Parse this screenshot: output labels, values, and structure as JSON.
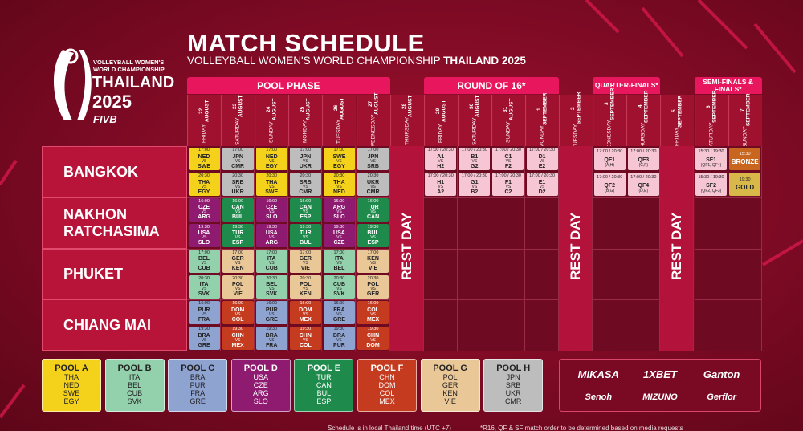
{
  "header": {
    "title": "MATCH SCHEDULE",
    "subtitle": "VOLLEYBALL WOMEN'S WORLD CHAMPIONSHIP",
    "subtitle_strong": "THAILAND 2025"
  },
  "logo": {
    "line1": "VOLLEYBALL WOMEN'S",
    "line2": "WORLD CHAMPIONSHIP",
    "line3": "THAILAND",
    "line4": "2025",
    "brand": "FIVB"
  },
  "vs": "VS",
  "cities": [
    [
      "BANGKOK"
    ],
    [
      "NAKHON",
      "RATCHASIMA"
    ],
    [
      "PHUKET"
    ],
    [
      "CHIANG MAI"
    ]
  ],
  "sections": [
    {
      "label": "POOL PHASE",
      "days": [
        {
          "weekday": "FRIDAY",
          "date": "22 AUGUST",
          "games": [
            {
              "time": "17:00",
              "home": "NED",
              "away": "SWE",
              "color": "#f4d21c"
            },
            {
              "time": "20:30",
              "home": "THA",
              "away": "EGY",
              "color": "#f4d21c"
            },
            {
              "time": "16:00",
              "home": "CZE",
              "away": "ARG",
              "color": "#8e1b70"
            },
            {
              "time": "19:30",
              "home": "USA",
              "away": "SLO",
              "color": "#8e1b70"
            },
            {
              "time": "17:00",
              "home": "BEL",
              "away": "CUB",
              "color": "#93d1ad"
            },
            {
              "time": "20:30",
              "home": "ITA",
              "away": "SVK",
              "color": "#93d1ad"
            },
            {
              "time": "16:00",
              "home": "PUR",
              "away": "FRA",
              "color": "#8fa3d1"
            },
            {
              "time": "19:30",
              "home": "BRA",
              "away": "GRE",
              "color": "#8fa3d1"
            }
          ]
        },
        {
          "weekday": "SATURDAY",
          "date": "23 AUGUST",
          "games": [
            {
              "time": "17:00",
              "home": "JPN",
              "away": "CMR",
              "color": "#bdbdbd"
            },
            {
              "time": "20:30",
              "home": "SRB",
              "away": "UKR",
              "color": "#bdbdbd"
            },
            {
              "time": "16:00",
              "home": "CAN",
              "away": "BUL",
              "color": "#1e8a4b"
            },
            {
              "time": "19:30",
              "home": "TUR",
              "away": "ESP",
              "color": "#1e8a4b"
            },
            {
              "time": "17:00",
              "home": "GER",
              "away": "KEN",
              "color": "#eac796"
            },
            {
              "time": "20:30",
              "home": "POL",
              "away": "VIE",
              "color": "#eac796"
            },
            {
              "time": "16:00",
              "home": "DOM",
              "away": "COL",
              "color": "#c53b1f"
            },
            {
              "time": "19:30",
              "home": "CHN",
              "away": "MEX",
              "color": "#c53b1f"
            }
          ]
        },
        {
          "weekday": "SUNDAY",
          "date": "24 AUGUST",
          "games": [
            {
              "time": "17:00",
              "home": "NED",
              "away": "EGY",
              "color": "#f4d21c"
            },
            {
              "time": "20:30",
              "home": "THA",
              "away": "SWE",
              "color": "#f4d21c"
            },
            {
              "time": "16:00",
              "home": "CZE",
              "away": "SLO",
              "color": "#8e1b70"
            },
            {
              "time": "19:30",
              "home": "USA",
              "away": "ARG",
              "color": "#8e1b70"
            },
            {
              "time": "17:00",
              "home": "ITA",
              "away": "CUB",
              "color": "#93d1ad"
            },
            {
              "time": "20:30",
              "home": "BEL",
              "away": "SVK",
              "color": "#93d1ad"
            },
            {
              "time": "16:00",
              "home": "PUR",
              "away": "GRE",
              "color": "#8fa3d1"
            },
            {
              "time": "19:30",
              "home": "BRA",
              "away": "FRA",
              "color": "#8fa3d1"
            }
          ]
        },
        {
          "weekday": "MONDAY",
          "date": "25 AUGUST",
          "games": [
            {
              "time": "17:00",
              "home": "JPN",
              "away": "UKR",
              "color": "#bdbdbd"
            },
            {
              "time": "20:30",
              "home": "SRB",
              "away": "CMR",
              "color": "#bdbdbd"
            },
            {
              "time": "16:00",
              "home": "CAN",
              "away": "ESP",
              "color": "#1e8a4b"
            },
            {
              "time": "19:30",
              "home": "TUR",
              "away": "BUL",
              "color": "#1e8a4b"
            },
            {
              "time": "17:00",
              "home": "GER",
              "away": "VIE",
              "color": "#eac796"
            },
            {
              "time": "20:30",
              "home": "POL",
              "away": "KEN",
              "color": "#eac796"
            },
            {
              "time": "16:00",
              "home": "DOM",
              "away": "MEX",
              "color": "#c53b1f"
            },
            {
              "time": "19:30",
              "home": "CHN",
              "away": "COL",
              "color": "#c53b1f"
            }
          ]
        },
        {
          "weekday": "TUESDAY",
          "date": "26 AUGUST",
          "games": [
            {
              "time": "17:00",
              "home": "SWE",
              "away": "EGY",
              "color": "#f4d21c"
            },
            {
              "time": "20:30",
              "home": "THA",
              "away": "NED",
              "color": "#f4d21c"
            },
            {
              "time": "16:00",
              "home": "ARG",
              "away": "SLO",
              "color": "#8e1b70"
            },
            {
              "time": "19:30",
              "home": "USA",
              "away": "CZE",
              "color": "#8e1b70"
            },
            {
              "time": "17:00",
              "home": "ITA",
              "away": "BEL",
              "color": "#93d1ad"
            },
            {
              "time": "20:30",
              "home": "CUB",
              "away": "SVK",
              "color": "#93d1ad"
            },
            {
              "time": "16:00",
              "home": "FRA",
              "away": "GRE",
              "color": "#8fa3d1"
            },
            {
              "time": "19:30",
              "home": "BRA",
              "away": "PUR",
              "color": "#8fa3d1"
            }
          ]
        },
        {
          "weekday": "WEDNESDAY",
          "date": "27 AUGUST",
          "games": [
            {
              "time": "17:00",
              "home": "JPN",
              "away": "SRB",
              "color": "#bdbdbd"
            },
            {
              "time": "20:30",
              "home": "UKR",
              "away": "CMR",
              "color": "#bdbdbd"
            },
            {
              "time": "16:00",
              "home": "TUR",
              "away": "CAN",
              "color": "#1e8a4b"
            },
            {
              "time": "19:30",
              "home": "BUL",
              "away": "ESP",
              "color": "#1e8a4b"
            },
            {
              "time": "17:00",
              "home": "KEN",
              "away": "VIE",
              "color": "#eac796"
            },
            {
              "time": "20:30",
              "home": "POL",
              "away": "GER",
              "color": "#eac796"
            },
            {
              "time": "16:00",
              "home": "COL",
              "away": "MEX",
              "color": "#c53b1f"
            },
            {
              "time": "19:30",
              "home": "CHN",
              "away": "DOM",
              "color": "#c53b1f"
            }
          ]
        }
      ]
    },
    {
      "rest": "REST DAY",
      "days": [
        {
          "weekday": "THURSDAY",
          "date": "28 AUGUST"
        }
      ]
    },
    {
      "label": "ROUND OF 16*",
      "days": [
        {
          "weekday": "FRIDAY",
          "date": "29 AUGUST",
          "games": [
            {
              "time": "17:00 / 20:30",
              "home": "A1",
              "away": "H2",
              "color": "#f7c6d4"
            },
            {
              "time": "17:00 / 20:30",
              "home": "H1",
              "away": "A2",
              "color": "#f7c6d4"
            }
          ]
        },
        {
          "weekday": "SATURDAY",
          "date": "30 AUGUST",
          "games": [
            {
              "time": "17:00 / 20:30",
              "home": "B1",
              "away": "G2",
              "color": "#f7c6d4"
            },
            {
              "time": "17:00 / 20:30",
              "home": "G1",
              "away": "B2",
              "color": "#f7c6d4"
            }
          ]
        },
        {
          "weekday": "SUNDAY",
          "date": "31 AUGUST",
          "games": [
            {
              "time": "17:00 / 20:30",
              "home": "C1",
              "away": "F2",
              "color": "#f7c6d4"
            },
            {
              "time": "17:00 / 20:30",
              "home": "F1",
              "away": "C2",
              "color": "#f7c6d4"
            }
          ]
        },
        {
          "weekday": "MONDAY",
          "date": "1 SEPTEMBER",
          "games": [
            {
              "time": "17:00 / 20:30",
              "home": "D1",
              "away": "E2",
              "color": "#f7c6d4"
            },
            {
              "time": "17:00 / 20:30",
              "home": "E1",
              "away": "D2",
              "color": "#f7c6d4"
            }
          ]
        }
      ]
    },
    {
      "rest": "REST DAY",
      "days": [
        {
          "weekday": "TUESDAY",
          "date": "2 SEPTEMBER"
        }
      ]
    },
    {
      "label": "QUARTER-FINALS*",
      "days": [
        {
          "weekday": "WEDNESDAY",
          "date": "3 SEPTEMBER",
          "games": [
            {
              "time": "17:00 / 20:30",
              "code": "QF1",
              "note": "(A,H)",
              "color": "#f7c6d4"
            },
            {
              "time": "17:00 / 20:30",
              "code": "QF2",
              "note": "(B,G)",
              "color": "#f7c6d4"
            }
          ]
        },
        {
          "weekday": "THURSDAY",
          "date": "4 SEPTEMBER",
          "games": [
            {
              "time": "17:00 / 20:30",
              "code": "QF3",
              "note": "(C,F)",
              "color": "#f7c6d4"
            },
            {
              "time": "17:00 / 20:30",
              "code": "QF4",
              "note": "(D,E)",
              "color": "#f7c6d4"
            }
          ]
        }
      ]
    },
    {
      "rest": "REST DAY",
      "days": [
        {
          "weekday": "FRIDAY",
          "date": "5 SEPTEMBER"
        }
      ]
    },
    {
      "label": "SEMI-FINALS & FINALS*",
      "days": [
        {
          "weekday": "SATURDAY",
          "date": "6 SEPTEMBER",
          "games": [
            {
              "time": "15:30 / 19:30",
              "code": "SF1",
              "note": "(QF1, QF4)",
              "color": "#f7c6d4"
            },
            {
              "time": "15:30 / 19:30",
              "code": "SF2",
              "note": "(QF2, QF3)",
              "color": "#f7c6d4"
            }
          ]
        },
        {
          "weekday": "SUNDAY",
          "date": "7 SEPTEMBER",
          "games": [
            {
              "time": "15:30",
              "code": "BRONZE",
              "color": "#c8651f"
            },
            {
              "time": "19:30",
              "code": "GOLD",
              "color": "#d9b84a"
            }
          ]
        }
      ]
    }
  ],
  "pools": [
    {
      "name": "POOL A",
      "color": "#f4d21c",
      "teams": [
        "THA",
        "NED",
        "SWE",
        "EGY"
      ]
    },
    {
      "name": "POOL B",
      "color": "#93d1ad",
      "teams": [
        "ITA",
        "BEL",
        "CUB",
        "SVK"
      ]
    },
    {
      "name": "POOL C",
      "color": "#8fa3d1",
      "teams": [
        "BRA",
        "PUR",
        "FRA",
        "GRE"
      ]
    },
    {
      "name": "POOL D",
      "color": "#8e1b70",
      "teams": [
        "USA",
        "CZE",
        "ARG",
        "SLO"
      ]
    },
    {
      "name": "POOL E",
      "color": "#1e8a4b",
      "teams": [
        "TUR",
        "CAN",
        "BUL",
        "ESP"
      ]
    },
    {
      "name": "POOL F",
      "color": "#c53b1f",
      "teams": [
        "CHN",
        "DOM",
        "COL",
        "MEX"
      ]
    },
    {
      "name": "POOL G",
      "color": "#eac796",
      "teams": [
        "POL",
        "GER",
        "KEN",
        "VIE"
      ]
    },
    {
      "name": "POOL H",
      "color": "#bdbdbd",
      "teams": [
        "JPN",
        "SRB",
        "UKR",
        "CMR"
      ]
    }
  ],
  "sponsors": [
    "MIKASA",
    "1XBET",
    "Ganton",
    "Senoh",
    "MIZUNO",
    "Gerflor"
  ],
  "footer": [
    "Schedule is in local Thailand time (UTC +7)",
    "*R16, QF & SF match order to be determined based on media requests"
  ]
}
